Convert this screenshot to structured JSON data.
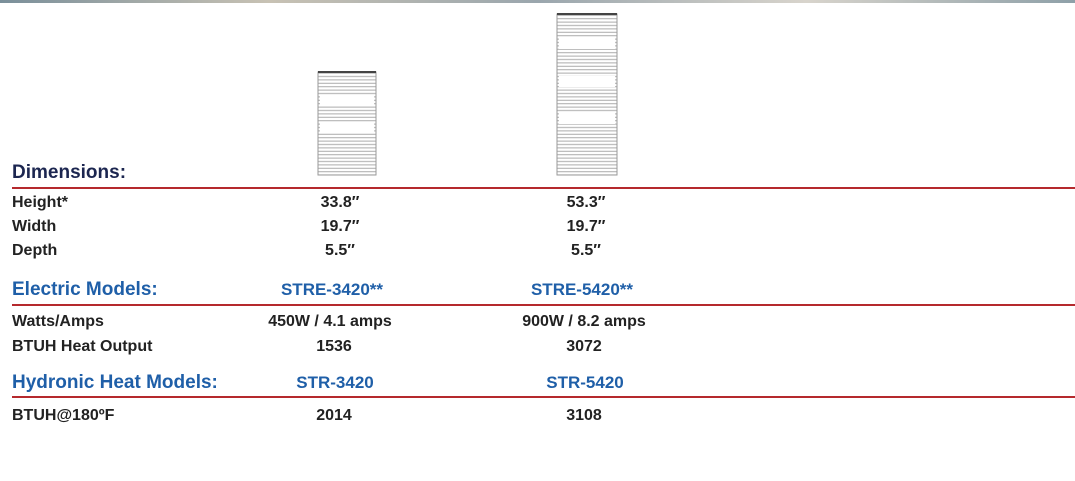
{
  "dimensions": {
    "heading": "Dimensions:",
    "rows": [
      [
        "Height*",
        "33.8″",
        "53.3″"
      ],
      [
        "Width",
        "19.7″",
        "19.7″"
      ],
      [
        "Depth",
        "5.5″",
        "5.5″"
      ]
    ]
  },
  "electric": {
    "heading": "Electric Models:",
    "models": [
      "STRE-3420**",
      "STRE-5420**"
    ],
    "rows": [
      [
        "Watts/Amps",
        "450W / 4.1 amps",
        "900W / 8.2 amps"
      ],
      [
        "BTUH Heat Output",
        "1536",
        "3072"
      ]
    ]
  },
  "hydronic": {
    "heading": "Hydronic Heat Models:",
    "models": [
      "STR-3420",
      "STR-5420"
    ],
    "rows": [
      [
        "BTUH@180ºF",
        "2014",
        "3108"
      ]
    ]
  }
}
